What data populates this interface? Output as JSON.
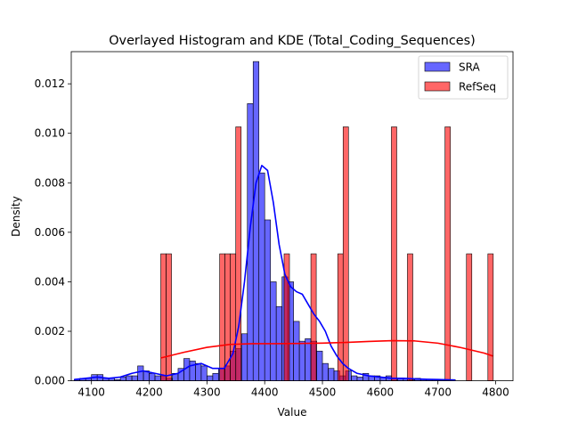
{
  "chart_data": {
    "type": "histogram",
    "title": "Overlayed Histogram and KDE (Total_Coding_Sequences)",
    "xlabel": "Value",
    "ylabel": "Density",
    "xlim": [
      4065,
      4830
    ],
    "ylim": [
      0,
      0.0133
    ],
    "xticks": [
      4100,
      4200,
      4300,
      4400,
      4500,
      4600,
      4700,
      4800
    ],
    "yticks": [
      0.0,
      0.002,
      0.004,
      0.006,
      0.008,
      0.01,
      0.012
    ],
    "ytick_labels": [
      "0.000",
      "0.002",
      "0.004",
      "0.006",
      "0.008",
      "0.010",
      "0.012"
    ],
    "legend": {
      "position": "top-right"
    },
    "series": [
      {
        "name": "SRA",
        "color": "#0000ff",
        "bin_edges": [
          4070,
          4080,
          4090,
          4100,
          4110,
          4120,
          4130,
          4140,
          4150,
          4160,
          4170,
          4180,
          4190,
          4200,
          4210,
          4220,
          4230,
          4240,
          4250,
          4260,
          4270,
          4280,
          4290,
          4300,
          4310,
          4320,
          4330,
          4340,
          4350,
          4360,
          4370,
          4380,
          4390,
          4400,
          4410,
          4420,
          4430,
          4440,
          4450,
          4460,
          4470,
          4480,
          4490,
          4500,
          4510,
          4520,
          4530,
          4540,
          4550,
          4560,
          4570,
          4580,
          4590,
          4600,
          4610,
          4620,
          4630,
          4640,
          4650,
          4660,
          4670,
          4680,
          4690,
          4700,
          4710,
          4720,
          4730
        ],
        "density": [
          5e-05,
          0.0001,
          0.0001,
          0.00025,
          0.00025,
          0.0001,
          0.0001,
          5e-05,
          0.00015,
          0.0002,
          0.0002,
          0.0006,
          0.0004,
          0.0003,
          0.0002,
          0.0002,
          0.0001,
          0.0003,
          0.0005,
          0.0009,
          0.0008,
          0.0007,
          0.0006,
          0.0002,
          0.0003,
          0.0005,
          0.0006,
          0.0012,
          0.0013,
          0.0019,
          0.0112,
          0.0129,
          0.0084,
          0.0065,
          0.004,
          0.003,
          0.0042,
          0.004,
          0.0024,
          0.0016,
          0.0017,
          0.0016,
          0.0012,
          0.0007,
          0.0005,
          0.0004,
          0.0002,
          0.0004,
          0.0002,
          0.00015,
          0.0003,
          0.0002,
          0.0002,
          0.00015,
          0.0002,
          0.0001,
          0.0001,
          0.0001,
          5e-05,
          0.0001,
          5e-05,
          5e-05,
          5e-05,
          5e-05,
          5e-05,
          5e-05
        ],
        "kde": {
          "x": [
            4070,
            4090,
            4110,
            4130,
            4150,
            4170,
            4190,
            4210,
            4230,
            4250,
            4270,
            4290,
            4310,
            4330,
            4345,
            4355,
            4365,
            4375,
            4385,
            4395,
            4405,
            4415,
            4425,
            4435,
            4445,
            4455,
            4465,
            4475,
            4485,
            4495,
            4505,
            4515,
            4525,
            4535,
            4545,
            4560,
            4580,
            4600,
            4620,
            4640,
            4660,
            4680,
            4700,
            4720,
            4730
          ],
          "y": [
            5e-05,
            0.0001,
            0.00015,
            0.0001,
            0.00015,
            0.0003,
            0.0004,
            0.0003,
            0.0002,
            0.0003,
            0.0006,
            0.0007,
            0.0005,
            0.0005,
            0.0011,
            0.0022,
            0.004,
            0.0062,
            0.008,
            0.0087,
            0.0085,
            0.0072,
            0.0055,
            0.0043,
            0.0038,
            0.0036,
            0.0035,
            0.0031,
            0.0027,
            0.0024,
            0.002,
            0.0014,
            0.001,
            0.0007,
            0.0005,
            0.0003,
            0.0002,
            0.00015,
            0.0001,
            0.0001,
            8e-05,
            6e-05,
            5e-05,
            4e-05,
            3e-05
          ]
        }
      },
      {
        "name": "RefSeq",
        "color": "#ff0000",
        "bins": [
          {
            "x0": 4220,
            "x1": 4229.3,
            "density": 0.00513
          },
          {
            "x0": 4229.3,
            "x1": 4238.6,
            "density": 0.00513
          },
          {
            "x0": 4322,
            "x1": 4331.3,
            "density": 0.00513
          },
          {
            "x0": 4331.3,
            "x1": 4340.6,
            "density": 0.00513
          },
          {
            "x0": 4340.6,
            "x1": 4349.9,
            "density": 0.00513
          },
          {
            "x0": 4349.9,
            "x1": 4359.2,
            "density": 0.01026
          },
          {
            "x0": 4433.6,
            "x1": 4442.9,
            "density": 0.00513
          },
          {
            "x0": 4480,
            "x1": 4489.3,
            "density": 0.00513
          },
          {
            "x0": 4526.5,
            "x1": 4535.8,
            "density": 0.00513
          },
          {
            "x0": 4535.8,
            "x1": 4545.1,
            "density": 0.01026
          },
          {
            "x0": 4619.4,
            "x1": 4628.7,
            "density": 0.01026
          },
          {
            "x0": 4647.2,
            "x1": 4656.5,
            "density": 0.00513
          },
          {
            "x0": 4712.2,
            "x1": 4721.5,
            "density": 0.01026
          },
          {
            "x0": 4749.4,
            "x1": 4758.7,
            "density": 0.00513
          },
          {
            "x0": 4786.5,
            "x1": 4795.8,
            "density": 0.00513
          }
        ],
        "kde": {
          "x": [
            4220,
            4260,
            4300,
            4340,
            4380,
            4420,
            4460,
            4500,
            4540,
            4580,
            4620,
            4660,
            4700,
            4740,
            4780,
            4795
          ],
          "y": [
            0.00092,
            0.00115,
            0.00135,
            0.00147,
            0.0015,
            0.0015,
            0.00151,
            0.00152,
            0.00155,
            0.00159,
            0.00162,
            0.00161,
            0.00152,
            0.00134,
            0.00112,
            0.001
          ]
        }
      }
    ]
  }
}
